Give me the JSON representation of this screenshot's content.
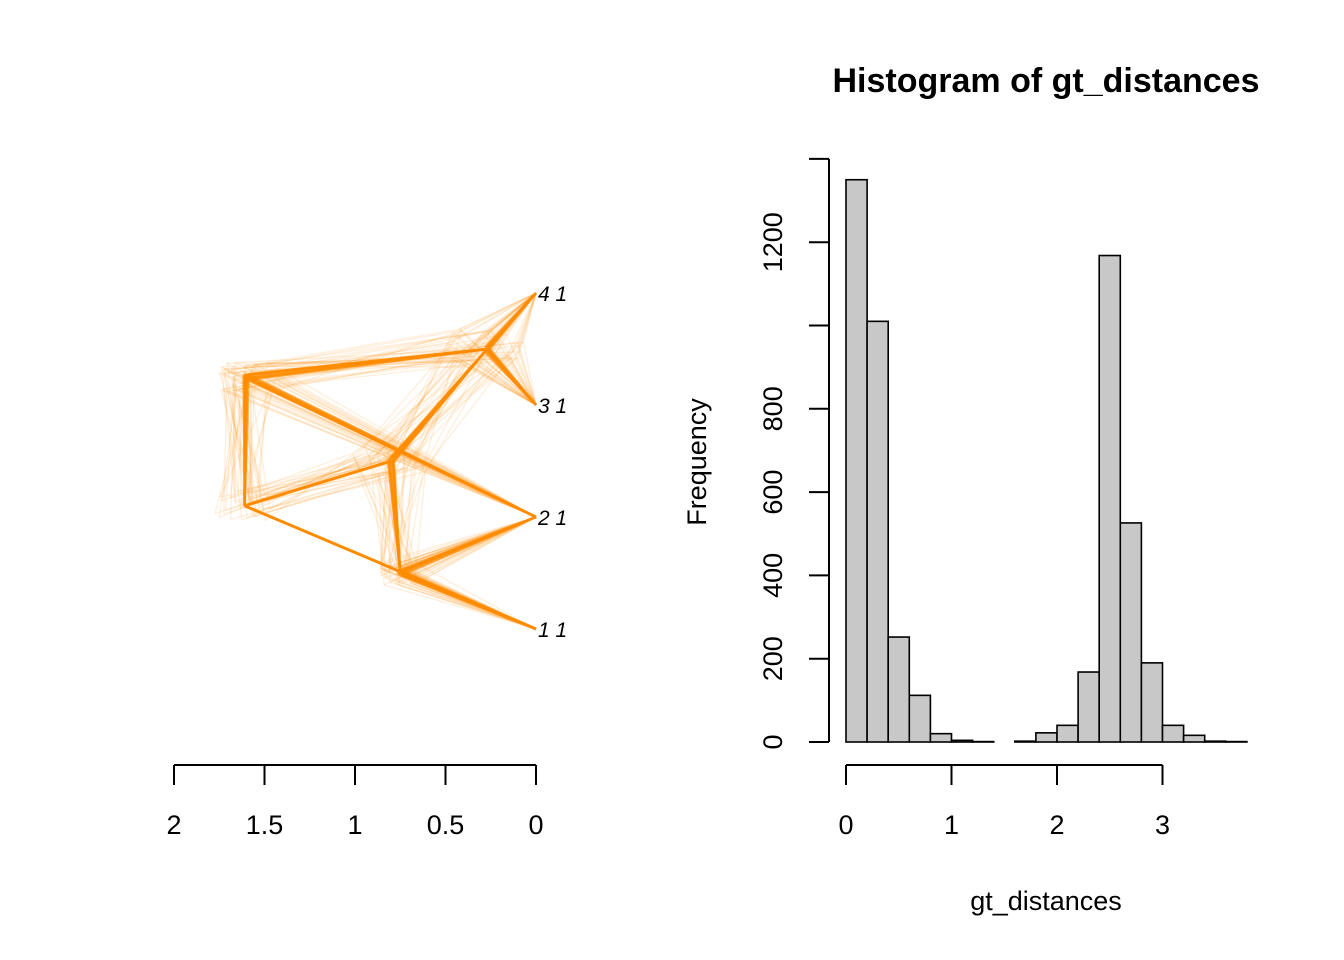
{
  "chart_data": [
    {
      "type": "tree",
      "x_axis": {
        "reversed": true,
        "ticks": [
          2,
          1.5,
          1,
          0.5,
          0
        ],
        "tick_labels": [
          "2",
          "1.5",
          "1",
          "0.5",
          "0"
        ]
      },
      "tips": [
        {
          "label": "4 1",
          "position": 4
        },
        {
          "label": "3 1",
          "position": 3
        },
        {
          "label": "2 1",
          "position": 2
        },
        {
          "label": "1 1",
          "position": 1
        }
      ],
      "dominant_topology": {
        "root": {
          "height": 1.61,
          "y": 2.1
        },
        "nodes": [
          {
            "name": "node-3-4",
            "height": 0.27,
            "y": 3.5,
            "children": [
              "4 1",
              "3 1"
            ]
          },
          {
            "name": "node-2-34",
            "height": 1.6,
            "y": 3.25,
            "children": [
              "node-3-4",
              "2 1"
            ]
          },
          {
            "name": "node-1-2",
            "height": 0.75,
            "y": 1.5,
            "children": [
              "1 1",
              "2 1"
            ]
          },
          {
            "name": "node-12-34",
            "height": 0.8,
            "y": 2.5,
            "children": [
              "node-1-2",
              "node-3-4"
            ]
          }
        ]
      },
      "line_color": "#FF8C00"
    },
    {
      "type": "bar",
      "title": "Histogram of gt_distances",
      "xlabel": "gt_distances",
      "ylabel": "Frequency",
      "bin_width": 0.2,
      "bin_start": 0,
      "values": [
        1350,
        1010,
        252,
        112,
        20,
        4,
        1,
        0,
        2,
        22,
        40,
        168,
        1168,
        526,
        190,
        40,
        16,
        2,
        1
      ],
      "x_ticks": [
        0,
        1,
        2,
        3
      ],
      "y_ticks": [
        0,
        200,
        400,
        600,
        800,
        1000,
        1200,
        1400
      ],
      "y_tick_labels": [
        "0",
        "200",
        "400",
        "600",
        "800",
        "",
        "1200",
        ""
      ],
      "bar_fill": "#C8C8C8",
      "bar_stroke": "#000000"
    }
  ]
}
